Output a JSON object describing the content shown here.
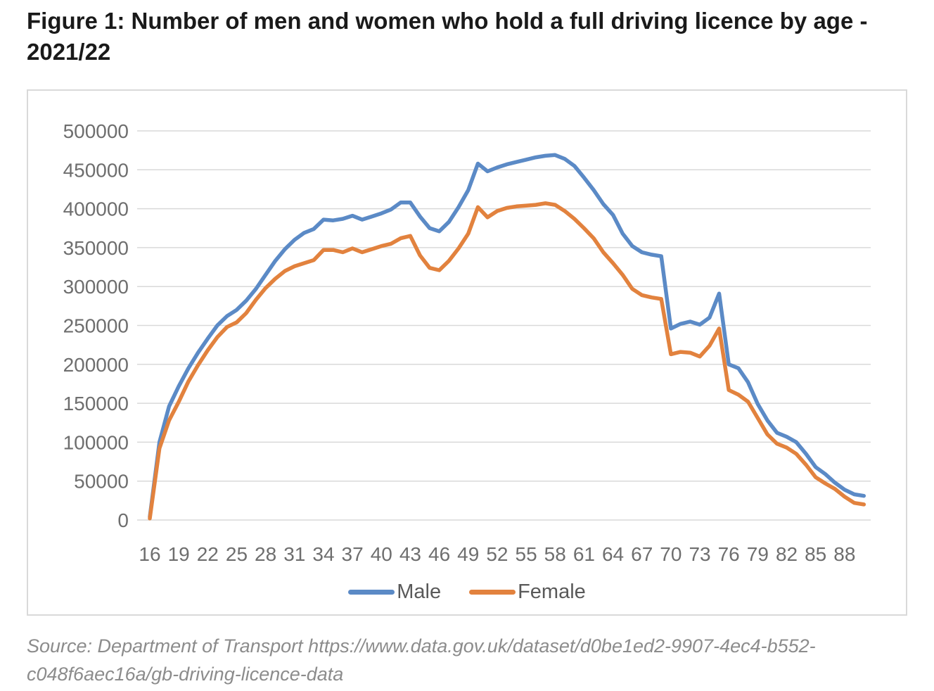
{
  "figure": {
    "title": "Figure 1: Number of men and women who hold a full driving licence by age - 2021/22",
    "source_lines": [
      "Source: Department of Transport https://www.data.gov.uk/dataset/d0be1ed2-9907-4ec4-b552-",
      "c048f6aec16a/gb-driving-licence-data"
    ]
  },
  "colors": {
    "male_line": "#5b8ac6",
    "female_line": "#e2823e",
    "gridline": "#d9d9d9",
    "axis_text": "#6e6e6e",
    "legend_text": "#595959",
    "chart_border": "#d9d9d9"
  },
  "chart_data": {
    "type": "line",
    "title": "Figure 1: Number of men and women who hold a full driving licence by age - 2021/22",
    "xlabel": "",
    "ylabel": "",
    "grid": "horizontal",
    "legend_position": "bottom-center",
    "ylim": [
      0,
      500000
    ],
    "y_ticks": [
      0,
      50000,
      100000,
      150000,
      200000,
      250000,
      300000,
      350000,
      400000,
      450000,
      500000
    ],
    "x_tick_labels": [
      16,
      19,
      22,
      25,
      28,
      31,
      34,
      37,
      40,
      43,
      46,
      49,
      52,
      55,
      58,
      61,
      64,
      67,
      70,
      73,
      76,
      79,
      82,
      85,
      88
    ],
    "x": [
      16,
      17,
      18,
      19,
      20,
      21,
      22,
      23,
      24,
      25,
      26,
      27,
      28,
      29,
      30,
      31,
      32,
      33,
      34,
      35,
      36,
      37,
      38,
      39,
      40,
      41,
      42,
      43,
      44,
      45,
      46,
      47,
      48,
      49,
      50,
      51,
      52,
      53,
      54,
      55,
      56,
      57,
      58,
      59,
      60,
      61,
      62,
      63,
      64,
      65,
      66,
      67,
      68,
      69,
      70,
      71,
      72,
      73,
      74,
      75,
      76,
      77,
      78,
      79,
      80,
      81,
      82,
      83,
      84,
      85,
      86,
      87,
      88,
      89,
      90
    ],
    "series": [
      {
        "name": "Male",
        "color": "#5b8ac6",
        "values": [
          4000,
          100000,
          146000,
          172000,
          195000,
          215000,
          233000,
          250000,
          262000,
          270000,
          282000,
          297000,
          315000,
          333000,
          348000,
          360000,
          369000,
          374000,
          386000,
          385000,
          387000,
          391000,
          386000,
          390000,
          394000,
          399000,
          408000,
          408000,
          390000,
          375000,
          371000,
          383000,
          402000,
          424000,
          458000,
          448000,
          453000,
          457000,
          460000,
          463000,
          466000,
          468000,
          469000,
          464000,
          455000,
          440000,
          424000,
          406000,
          392000,
          368000,
          352000,
          344000,
          341000,
          339000,
          246000,
          252000,
          255000,
          251000,
          260000,
          291000,
          200000,
          195000,
          177000,
          149000,
          128000,
          112000,
          107000,
          100000,
          85000,
          68000,
          59000,
          48000,
          39000,
          33000,
          31000
        ]
      },
      {
        "name": "Female",
        "color": "#e2823e",
        "values": [
          2000,
          92000,
          128000,
          152000,
          178000,
          199000,
          218000,
          235000,
          248000,
          254000,
          266000,
          283000,
          298000,
          310000,
          320000,
          326000,
          330000,
          334000,
          347000,
          347000,
          344000,
          349000,
          344000,
          348000,
          352000,
          355000,
          362000,
          365000,
          340000,
          324000,
          321000,
          333000,
          349000,
          368000,
          402000,
          389000,
          397000,
          401000,
          403000,
          404000,
          405000,
          407000,
          405000,
          397000,
          387000,
          375000,
          362000,
          344000,
          330000,
          315000,
          297000,
          289000,
          286000,
          284000,
          213000,
          216000,
          215000,
          210000,
          224000,
          246000,
          167000,
          161000,
          152000,
          131000,
          110000,
          98000,
          93000,
          85000,
          71000,
          55000,
          47000,
          40000,
          30000,
          22000,
          20000
        ]
      }
    ]
  }
}
